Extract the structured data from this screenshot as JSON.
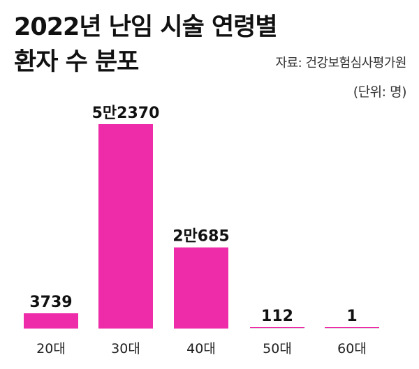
{
  "title_line1": "2022년 난임 시술 연령별",
  "title_line2": "환자 수 분포",
  "source": "자료: 건강보험심사평가원",
  "unit": "(단위: 명)",
  "colors": {
    "bar": "#ee2ba8",
    "baseline": "#cfcfcf"
  },
  "chart_data": {
    "type": "bar",
    "title": "2022년 난임 시술 연령별 환자 수 분포",
    "categories": [
      "20대",
      "30대",
      "40대",
      "50대",
      "60대"
    ],
    "values": [
      3739,
      52370,
      20685,
      112,
      1
    ],
    "value_labels": [
      "3739",
      "5만2370",
      "2만685",
      "112",
      "1"
    ],
    "xlabel": "",
    "ylabel": "",
    "grid": false,
    "legend": "none"
  }
}
